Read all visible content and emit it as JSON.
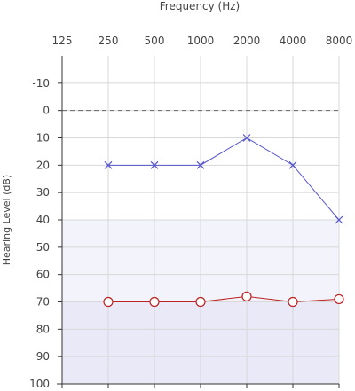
{
  "chart_data": {
    "type": "line",
    "xlabel": "Frequency (Hz)",
    "ylabel": "Hearing Level (dB)",
    "x_tick_labels": [
      "125",
      "250",
      "500",
      "1000",
      "2000",
      "4000",
      "8000"
    ],
    "y_tick_labels": [
      "-10",
      "0",
      "10",
      "20",
      "30",
      "40",
      "50",
      "60",
      "70",
      "80",
      "90",
      "100"
    ],
    "x_axis_position": "top",
    "y_range": [
      -20,
      100
    ],
    "y_inverted": true,
    "grid": true,
    "reference_line_y": 0,
    "shaded_bands": [
      {
        "from": 40,
        "to": 100,
        "color": "#f3f3fb"
      },
      {
        "from": 70,
        "to": 100,
        "color": "#e9e9f7"
      }
    ],
    "series": [
      {
        "marker": "x",
        "color": "#5555cc",
        "x": [
          "250",
          "500",
          "1000",
          "2000",
          "4000",
          "8000"
        ],
        "values": [
          20,
          20,
          20,
          10,
          20,
          40
        ]
      },
      {
        "marker": "o",
        "color": "#bb2222",
        "x": [
          "250",
          "500",
          "1000",
          "2000",
          "4000",
          "8000"
        ],
        "values": [
          70,
          70,
          70,
          68,
          70,
          69
        ]
      }
    ]
  }
}
